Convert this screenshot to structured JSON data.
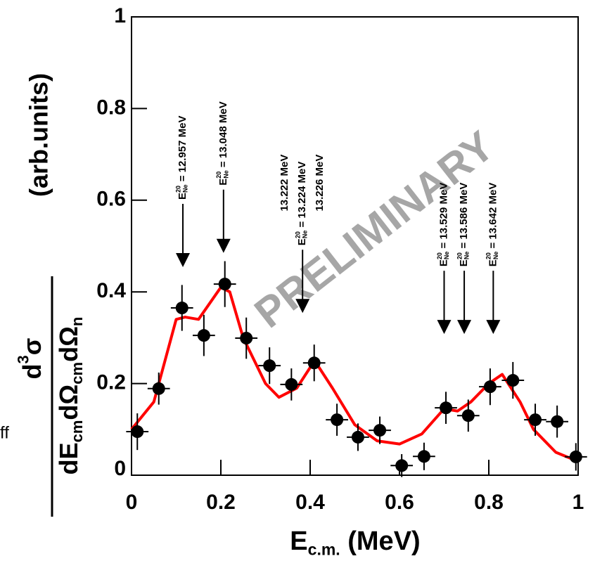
{
  "chart_data": {
    "type": "scatter",
    "xlabel": [
      {
        "t": "E"
      },
      {
        "t": "c.m.",
        "s": "sub"
      },
      {
        "t": " (MeV)"
      }
    ],
    "ylabel_numerator": [
      {
        "t": "d"
      },
      {
        "t": "3",
        "s": "sup"
      },
      {
        "t": "σ"
      }
    ],
    "ylabel_denominator": [
      {
        "t": "dE"
      },
      {
        "t": "cm",
        "s": "sub"
      },
      {
        "t": "dΩ"
      },
      {
        "t": "cm",
        "s": "sub"
      },
      {
        "t": "dΩ"
      },
      {
        "t": "n",
        "s": "sub"
      }
    ],
    "ylabel_unit": "(arb.units)",
    "watermark": "PRELIMINARY",
    "cropped_text": "ff",
    "xlim": [
      0,
      1
    ],
    "xticks": [
      0,
      0.2,
      0.4,
      0.6,
      0.8,
      1
    ],
    "ylim": [
      0,
      1
    ],
    "yticks": [
      0,
      0.2,
      0.4,
      0.6,
      0.8,
      1
    ],
    "points": {
      "color": "#000000",
      "x": [
        0.013,
        0.061,
        0.113,
        0.162,
        0.209,
        0.257,
        0.309,
        0.358,
        0.409,
        0.46,
        0.507,
        0.556,
        0.605,
        0.655,
        0.704,
        0.754,
        0.803,
        0.854,
        0.904,
        0.953,
        0.995
      ],
      "values": [
        0.095,
        0.189,
        0.365,
        0.305,
        0.417,
        0.299,
        0.239,
        0.198,
        0.245,
        0.121,
        0.083,
        0.098,
        0.021,
        0.041,
        0.147,
        0.13,
        0.193,
        0.207,
        0.121,
        0.117,
        0.04
      ],
      "yerr": [
        0.04,
        0.035,
        0.05,
        0.045,
        0.05,
        0.045,
        0.04,
        0.035,
        0.04,
        0.035,
        0.03,
        0.03,
        0.025,
        0.03,
        0.035,
        0.035,
        0.04,
        0.04,
        0.035,
        0.035,
        0.03
      ],
      "xerr": 0.025
    },
    "fit": {
      "color": "#ff0000",
      "x": [
        0,
        0.05,
        0.1,
        0.12,
        0.15,
        0.2,
        0.22,
        0.25,
        0.3,
        0.33,
        0.37,
        0.41,
        0.45,
        0.5,
        0.55,
        0.6,
        0.65,
        0.7,
        0.73,
        0.76,
        0.8,
        0.83,
        0.87,
        0.9,
        0.95,
        1.0
      ],
      "values": [
        0.1,
        0.16,
        0.34,
        0.345,
        0.34,
        0.41,
        0.4,
        0.3,
        0.2,
        0.17,
        0.19,
        0.25,
        0.19,
        0.11,
        0.075,
        0.068,
        0.09,
        0.145,
        0.14,
        0.16,
        0.2,
        0.22,
        0.16,
        0.1,
        0.05,
        0.03
      ]
    },
    "annotations": [
      {
        "x": 0.115,
        "y": 0.454,
        "lines": [
          [
            {
              "t": "E"
            },
            {
              "t": "20",
              "s": "sup"
            },
            {
              "t": "Ne",
              "s": "sub"
            },
            {
              "t": " = 12.957 MeV"
            }
          ]
        ]
      },
      {
        "x": 0.206,
        "y": 0.485,
        "lines": [
          [
            {
              "t": "E"
            },
            {
              "t": "20",
              "s": "sup"
            },
            {
              "t": "Ne",
              "s": "sub"
            },
            {
              "t": " = 13.048 MeV"
            }
          ]
        ]
      },
      {
        "x": 0.383,
        "y": 0.354,
        "lines": [
          [
            {
              "t": "13.222 MeV"
            }
          ],
          [
            {
              "t": "E"
            },
            {
              "t": "20",
              "s": "sup"
            },
            {
              "t": "Ne",
              "s": "sub"
            },
            {
              "t": " = 13.224 MeV"
            }
          ],
          [
            {
              "t": "13.226 MeV"
            }
          ]
        ]
      },
      {
        "x": 0.7,
        "y": 0.308,
        "lines": [
          [
            {
              "t": "E"
            },
            {
              "t": "20",
              "s": "sup"
            },
            {
              "t": "Ne",
              "s": "sub"
            },
            {
              "t": " = 13.529 MeV"
            }
          ]
        ]
      },
      {
        "x": 0.745,
        "y": 0.308,
        "lines": [
          [
            {
              "t": "E"
            },
            {
              "t": "20",
              "s": "sup"
            },
            {
              "t": "Ne",
              "s": "sub"
            },
            {
              "t": " = 13.586 MeV"
            }
          ]
        ]
      },
      {
        "x": 0.81,
        "y": 0.308,
        "lines": [
          [
            {
              "t": "E"
            },
            {
              "t": "20",
              "s": "sup"
            },
            {
              "t": "Ne",
              "s": "sub"
            },
            {
              "t": " = 13.642 MeV"
            }
          ]
        ]
      }
    ]
  }
}
